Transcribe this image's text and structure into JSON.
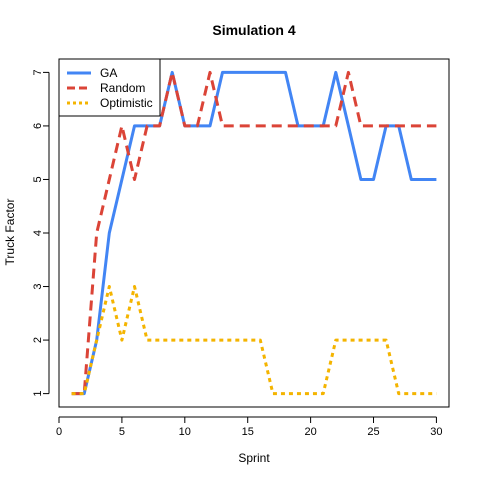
{
  "chart_data": {
    "type": "line",
    "title": "Simulation 4",
    "xlabel": "Sprint",
    "ylabel": "Truck Factor",
    "xlim": [
      0,
      31
    ],
    "ylim": [
      0.75,
      7.25
    ],
    "xticks": [
      0,
      5,
      10,
      15,
      20,
      25,
      30
    ],
    "yticks": [
      1,
      2,
      3,
      4,
      5,
      6,
      7
    ],
    "grid": false,
    "legend_position": "top-left",
    "x": [
      1,
      2,
      3,
      4,
      5,
      6,
      7,
      8,
      9,
      10,
      11,
      12,
      13,
      14,
      15,
      16,
      17,
      18,
      19,
      20,
      21,
      22,
      23,
      24,
      25,
      26,
      27,
      28,
      29,
      30
    ],
    "series": [
      {
        "name": "GA",
        "color": "#4285f4",
        "dash": "solid",
        "values": [
          1,
          1,
          2,
          4,
          5,
          6,
          6,
          6,
          7,
          6,
          6,
          6,
          7,
          7,
          7,
          7,
          7,
          7,
          6,
          6,
          6,
          7,
          6,
          5,
          5,
          6,
          6,
          5,
          5,
          5
        ]
      },
      {
        "name": "Random",
        "color": "#db4437",
        "dash": "dashed",
        "values": [
          1,
          1,
          4,
          5,
          6,
          5,
          6,
          6,
          7,
          6,
          6,
          7,
          6,
          6,
          6,
          6,
          6,
          6,
          6,
          6,
          6,
          6,
          7,
          6,
          6,
          6,
          6,
          6,
          6,
          6
        ]
      },
      {
        "name": "Optimistic",
        "color": "#f4b400",
        "dash": "dotted",
        "values": [
          1,
          1,
          2,
          3,
          2,
          3,
          2,
          2,
          2,
          2,
          2,
          2,
          2,
          2,
          2,
          2,
          1,
          1,
          1,
          1,
          1,
          2,
          2,
          2,
          2,
          2,
          1,
          1,
          1,
          1
        ]
      }
    ]
  }
}
